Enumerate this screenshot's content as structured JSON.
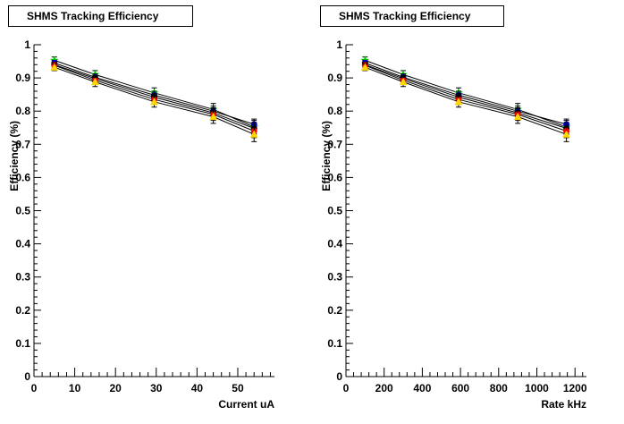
{
  "chart_data": [
    {
      "type": "line",
      "title": "SHMS Tracking Efficiency",
      "xlabel": "Current uA",
      "ylabel": "Efficiency (%)",
      "xlim": [
        0,
        59
      ],
      "ylim": [
        0,
        1
      ],
      "xticks": [
        0,
        10,
        20,
        30,
        40,
        50
      ],
      "yticks": [
        0,
        0.1,
        0.2,
        0.3,
        0.4,
        0.5,
        0.6,
        0.7,
        0.8,
        0.9,
        1
      ],
      "grid": false,
      "legend": "none",
      "series": [
        {
          "color": "#00cc00",
          "marker": "star",
          "x": [
            5,
            15,
            29.5,
            44,
            54
          ],
          "y": [
            0.953,
            0.91,
            0.855,
            0.805,
            0.752
          ],
          "err": [
            0.01,
            0.012,
            0.015,
            0.018,
            0.02
          ]
        },
        {
          "color": "#0000ff",
          "marker": "circle",
          "x": [
            5,
            15,
            29.5,
            44,
            54
          ],
          "y": [
            0.945,
            0.902,
            0.848,
            0.8,
            0.76
          ],
          "err": [
            0.008,
            0.01,
            0.012,
            0.015,
            0.016
          ]
        },
        {
          "color": "#000000",
          "marker": "circle",
          "x": [
            5,
            15,
            29.5,
            44,
            54
          ],
          "y": [
            0.94,
            0.898,
            0.842,
            0.795,
            0.748
          ],
          "err": [
            0.008,
            0.01,
            0.012,
            0.015,
            0.018
          ]
        },
        {
          "color": "#ff0000",
          "marker": "circle",
          "x": [
            5,
            15,
            29.5,
            44,
            54
          ],
          "y": [
            0.938,
            0.893,
            0.835,
            0.79,
            0.74
          ],
          "err": [
            0.01,
            0.012,
            0.015,
            0.018,
            0.02
          ]
        },
        {
          "color": "#ffd700",
          "marker": "triangle",
          "x": [
            5,
            15,
            29.5,
            44,
            54
          ],
          "y": [
            0.932,
            0.888,
            0.828,
            0.783,
            0.73
          ],
          "err": [
            0.01,
            0.014,
            0.016,
            0.02,
            0.022
          ]
        }
      ]
    },
    {
      "type": "line",
      "title": "SHMS Tracking Efficiency",
      "xlabel": "Rate kHz",
      "ylabel": "Efficiency (%)",
      "xlim": [
        0,
        1260
      ],
      "ylim": [
        0,
        1
      ],
      "xticks": [
        0,
        200,
        400,
        600,
        800,
        1000,
        1200
      ],
      "yticks": [
        0,
        0.1,
        0.2,
        0.3,
        0.4,
        0.5,
        0.6,
        0.7,
        0.8,
        0.9,
        1
      ],
      "grid": false,
      "legend": "none",
      "series": [
        {
          "color": "#00cc00",
          "marker": "star",
          "x": [
            100,
            300,
            590,
            900,
            1155
          ],
          "y": [
            0.953,
            0.91,
            0.855,
            0.805,
            0.752
          ],
          "err": [
            0.01,
            0.012,
            0.015,
            0.018,
            0.02
          ]
        },
        {
          "color": "#0000ff",
          "marker": "circle",
          "x": [
            100,
            300,
            590,
            900,
            1155
          ],
          "y": [
            0.945,
            0.902,
            0.848,
            0.8,
            0.76
          ],
          "err": [
            0.008,
            0.01,
            0.012,
            0.015,
            0.016
          ]
        },
        {
          "color": "#000000",
          "marker": "circle",
          "x": [
            100,
            300,
            590,
            900,
            1155
          ],
          "y": [
            0.94,
            0.898,
            0.842,
            0.795,
            0.748
          ],
          "err": [
            0.008,
            0.01,
            0.012,
            0.015,
            0.018
          ]
        },
        {
          "color": "#ff0000",
          "marker": "circle",
          "x": [
            100,
            300,
            590,
            900,
            1155
          ],
          "y": [
            0.938,
            0.893,
            0.835,
            0.79,
            0.74
          ],
          "err": [
            0.01,
            0.012,
            0.015,
            0.018,
            0.02
          ]
        },
        {
          "color": "#ffd700",
          "marker": "triangle",
          "x": [
            100,
            300,
            590,
            900,
            1155
          ],
          "y": [
            0.932,
            0.888,
            0.828,
            0.783,
            0.73
          ],
          "err": [
            0.01,
            0.014,
            0.016,
            0.02,
            0.022
          ]
        }
      ]
    }
  ]
}
